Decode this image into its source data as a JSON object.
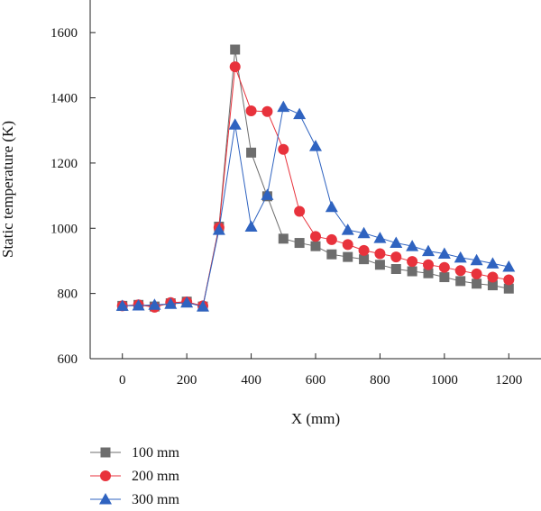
{
  "chart_data": {
    "type": "line",
    "xlabel": "X (mm)",
    "ylabel": "Static temperature (K)",
    "xlim": [
      -100,
      1300
    ],
    "ylim": [
      600,
      1700
    ],
    "xticks": [
      0,
      200,
      400,
      600,
      800,
      1000,
      1200
    ],
    "yticks": [
      600,
      800,
      1000,
      1200,
      1400,
      1600
    ],
    "grid": false,
    "legend_position": "bottom-left",
    "x": [
      0,
      50,
      100,
      150,
      200,
      250,
      300,
      350,
      400,
      450,
      500,
      550,
      600,
      650,
      700,
      750,
      800,
      850,
      900,
      950,
      1000,
      1050,
      1100,
      1150,
      1200
    ],
    "series": [
      {
        "name": "100 mm",
        "marker": "square",
        "color": "#6d6d6d",
        "values": [
          762,
          765,
          760,
          770,
          775,
          760,
          1005,
          1548,
          1232,
          1098,
          968,
          955,
          945,
          920,
          912,
          905,
          888,
          875,
          868,
          862,
          850,
          838,
          830,
          825,
          815
        ]
      },
      {
        "name": "200 mm",
        "marker": "circle",
        "color": "#e8323c",
        "values": [
          762,
          765,
          758,
          772,
          774,
          762,
          1002,
          1495,
          1360,
          1358,
          1242,
          1052,
          975,
          965,
          950,
          932,
          922,
          912,
          898,
          888,
          880,
          870,
          860,
          850,
          842
        ]
      },
      {
        "name": "300 mm",
        "marker": "triangle",
        "color": "#2f63c0",
        "values": [
          762,
          763,
          765,
          768,
          772,
          760,
          995,
          1318,
          1005,
          1102,
          1372,
          1350,
          1252,
          1065,
          995,
          985,
          970,
          955,
          945,
          930,
          922,
          910,
          902,
          892,
          882
        ]
      }
    ]
  }
}
